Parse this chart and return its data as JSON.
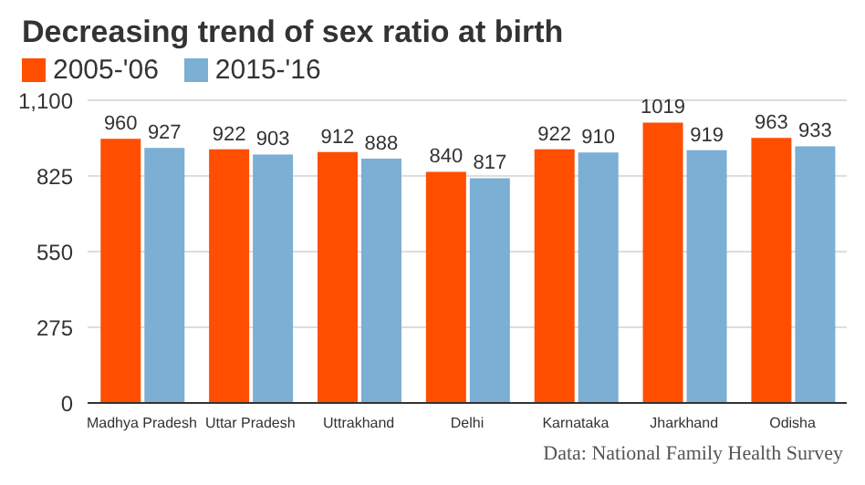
{
  "chart_data": {
    "type": "bar",
    "title": "Decreasing trend of sex ratio at birth",
    "categories": [
      "Madhya Pradesh",
      "Uttar Pradesh",
      "Uttrakhand",
      "Delhi",
      "Karnataka",
      "Jharkhand",
      "Odisha"
    ],
    "series": [
      {
        "name": "2005-'06",
        "color": "#ff4e00",
        "values": [
          960,
          922,
          912,
          840,
          922,
          1019,
          963
        ]
      },
      {
        "name": "2015-'16",
        "color": "#7bafd4",
        "values": [
          927,
          903,
          888,
          817,
          910,
          919,
          933
        ]
      }
    ],
    "ylim": [
      0,
      1100
    ],
    "yticks": [
      0,
      275,
      550,
      825,
      {
        "value": 1100,
        "label": "1,100"
      }
    ],
    "grid": "y",
    "legend": "top left",
    "data_labels": true,
    "annotations": [
      "Data: National Family Health Survey"
    ]
  }
}
